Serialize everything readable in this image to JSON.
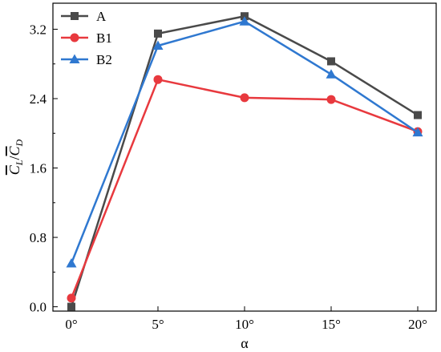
{
  "chart_data": {
    "type": "line",
    "x": [
      "0°",
      "5°",
      "10°",
      "15°",
      "20°"
    ],
    "xlabel": "α",
    "ylabel_parts": {
      "num_base": "C",
      "num_sub": "L",
      "slash": "/",
      "den_base": "C",
      "den_sub": "D"
    },
    "ylim": [
      -0.05,
      3.5
    ],
    "yticks": [
      "0.0",
      "0.8",
      "1.6",
      "2.4",
      "3.2"
    ],
    "ytick_values": [
      0.0,
      0.8,
      1.6,
      2.4,
      3.2
    ],
    "grid": false,
    "legend_position": "top-left",
    "series": [
      {
        "name": "A",
        "marker": "square",
        "color": "#4a4a4a",
        "values": [
          0.0,
          3.15,
          3.35,
          2.83,
          2.21
        ]
      },
      {
        "name": "B1",
        "marker": "circle",
        "color": "#e8393e",
        "values": [
          0.1,
          2.62,
          2.41,
          2.39,
          2.02
        ]
      },
      {
        "name": "B2",
        "marker": "triangle",
        "color": "#2f78d0",
        "values": [
          0.5,
          3.01,
          3.29,
          2.68,
          2.01
        ]
      }
    ]
  }
}
